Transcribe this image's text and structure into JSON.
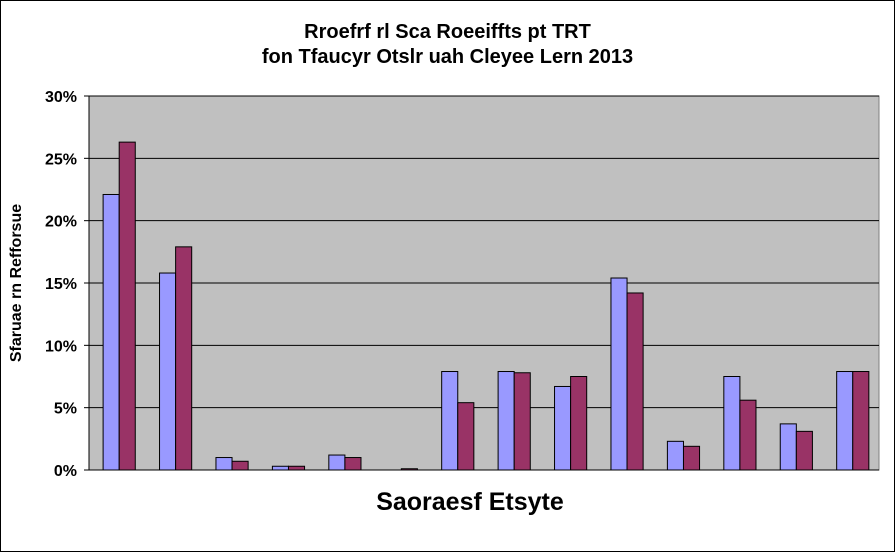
{
  "chart_data": {
    "type": "bar",
    "title_line1": "Rroefrf rl Sca Roeeiffts pt TRT",
    "title_line2": "fon Tfaucyr Otslr uah Cleyee Lern 2013",
    "xlabel": "Saoraesf Etsyte",
    "ylabel": "Sfaruae rn Refforsue",
    "ylim": [
      0,
      30
    ],
    "yticks": [
      "0%",
      "5%",
      "10%",
      "15%",
      "20%",
      "25%",
      "30%"
    ],
    "categories": [
      "",
      "",
      "",
      "",
      "",
      "",
      "",
      "",
      "",
      "",
      "",
      "",
      "",
      ""
    ],
    "series": [
      {
        "color": "#9999ff",
        "values": [
          22.1,
          15.8,
          1.0,
          0.3,
          1.2,
          0.0,
          7.9,
          7.9,
          6.7,
          15.4,
          2.3,
          7.5,
          3.7,
          7.9
        ]
      },
      {
        "color": "#993366",
        "values": [
          26.3,
          17.9,
          0.7,
          0.3,
          1.0,
          0.1,
          5.4,
          7.8,
          7.5,
          14.2,
          1.9,
          5.6,
          3.1,
          7.9
        ]
      }
    ],
    "plot_background": "#c0c0c0",
    "grid": true,
    "legend": "none"
  }
}
